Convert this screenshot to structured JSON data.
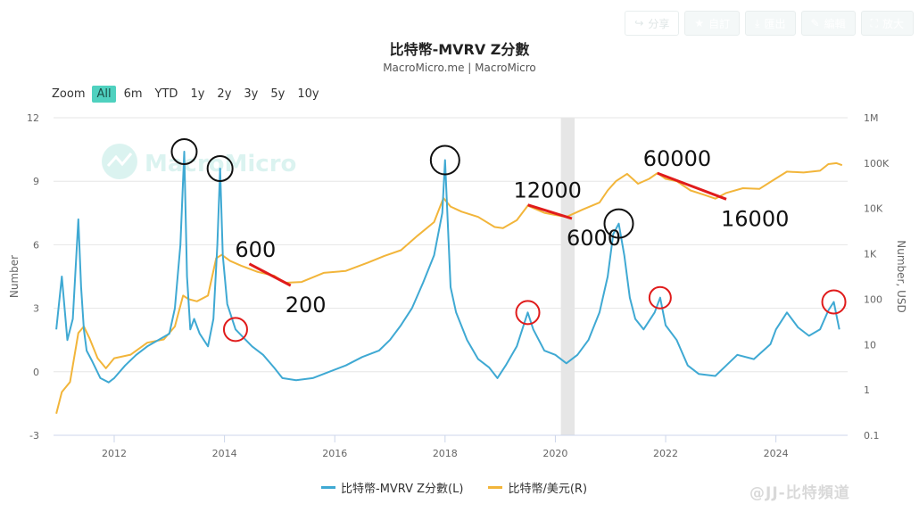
{
  "toolbar": {
    "buttons": [
      {
        "icon": "share-icon",
        "glyph": "↪",
        "label": "分享",
        "style": "outline"
      },
      {
        "icon": "star-icon",
        "glyph": "★",
        "label": "自訂",
        "style": "solid"
      },
      {
        "icon": "download-icon",
        "glyph": "⤓",
        "label": "匯出",
        "style": "solid"
      },
      {
        "icon": "pencil-icon",
        "glyph": "✎",
        "label": "編輯",
        "style": "solid"
      },
      {
        "icon": "expand-icon",
        "glyph": "⛶",
        "label": "放大",
        "style": "solid"
      }
    ]
  },
  "title": "比特幣-MVRV Z分數",
  "subtitle": "MacroMicro.me | MacroMicro",
  "range_selector": {
    "label": "Zoom",
    "options": [
      "All",
      "6m",
      "YTD",
      "1y",
      "2y",
      "3y",
      "5y",
      "10y"
    ],
    "selected": "All"
  },
  "watermark": "MacroMicro",
  "post_watermark": "@JJ-比特頻道",
  "chart_data": {
    "type": "line",
    "title": "比特幣-MVRV Z分數",
    "subtitle": "MacroMicro.me | MacroMicro",
    "xlabel": "",
    "x_ticks": [
      "2012",
      "2014",
      "2016",
      "2018",
      "2020",
      "2022",
      "2024"
    ],
    "x_range": [
      2010.9,
      2025.3
    ],
    "y_left": {
      "label": "Number",
      "ticks": [
        "-3",
        "0",
        "3",
        "6",
        "9",
        "12"
      ],
      "range": [
        -3,
        12
      ]
    },
    "y_right": {
      "label": "Number, USD",
      "scale": "log",
      "ticks": [
        "0.1",
        "1",
        "10",
        "100",
        "1K",
        "10K",
        "100K",
        "1M"
      ],
      "tick_values": [
        0.1,
        1,
        10,
        100,
        1000,
        10000,
        100000,
        1000000
      ],
      "range": [
        0.1,
        1000000
      ]
    },
    "grid": true,
    "legend_position": "bottom",
    "shaded_period": [
      2020.1,
      2020.35
    ],
    "colors": {
      "mvrv": "#3fa9d3",
      "price": "#f2b53a",
      "shade": "#e6e6e6",
      "annotation_line": "#e01b1b",
      "circle_black": "#111111",
      "circle_red": "#e01b1b"
    },
    "series": [
      {
        "name": "比特幣-MVRV Z分數(L)",
        "axis": "left",
        "x": [
          2010.95,
          2011.05,
          2011.15,
          2011.25,
          2011.35,
          2011.4,
          2011.45,
          2011.5,
          2011.6,
          2011.75,
          2011.9,
          2012.0,
          2012.2,
          2012.4,
          2012.6,
          2012.8,
          2013.0,
          2013.1,
          2013.2,
          2013.27,
          2013.32,
          2013.38,
          2013.45,
          2013.55,
          2013.7,
          2013.8,
          2013.87,
          2013.92,
          2013.97,
          2014.05,
          2014.2,
          2014.35,
          2014.5,
          2014.7,
          2014.9,
          2015.05,
          2015.3,
          2015.6,
          2015.9,
          2016.2,
          2016.5,
          2016.8,
          2017.0,
          2017.2,
          2017.4,
          2017.6,
          2017.8,
          2017.95,
          2018.0,
          2018.1,
          2018.2,
          2018.4,
          2018.6,
          2018.8,
          2018.95,
          2019.1,
          2019.3,
          2019.5,
          2019.6,
          2019.8,
          2020.0,
          2020.2,
          2020.4,
          2020.6,
          2020.8,
          2020.95,
          2021.05,
          2021.15,
          2021.25,
          2021.35,
          2021.45,
          2021.6,
          2021.8,
          2021.9,
          2022.0,
          2022.2,
          2022.4,
          2022.6,
          2022.9,
          2023.1,
          2023.3,
          2023.6,
          2023.9,
          2024.0,
          2024.2,
          2024.4,
          2024.6,
          2024.8,
          2024.95,
          2025.05,
          2025.15
        ],
        "y": [
          2.0,
          4.5,
          1.5,
          2.5,
          7.2,
          4.0,
          2.0,
          1.0,
          0.5,
          -0.3,
          -0.5,
          -0.3,
          0.3,
          0.8,
          1.2,
          1.5,
          1.8,
          3.0,
          6.0,
          10.4,
          4.5,
          2.0,
          2.5,
          1.8,
          1.2,
          2.5,
          6.0,
          9.6,
          5.5,
          3.2,
          2.0,
          1.6,
          1.2,
          0.8,
          0.2,
          -0.3,
          -0.4,
          -0.3,
          0.0,
          0.3,
          0.7,
          1.0,
          1.5,
          2.2,
          3.0,
          4.2,
          5.5,
          7.5,
          10.0,
          4.0,
          2.8,
          1.5,
          0.6,
          0.2,
          -0.3,
          0.3,
          1.2,
          2.8,
          2.0,
          1.0,
          0.8,
          0.4,
          0.8,
          1.5,
          2.8,
          4.5,
          6.5,
          7.0,
          5.5,
          3.5,
          2.5,
          2.0,
          2.8,
          3.5,
          2.2,
          1.5,
          0.3,
          -0.1,
          -0.2,
          0.3,
          0.8,
          0.6,
          1.3,
          2.0,
          2.8,
          2.1,
          1.7,
          2.0,
          2.9,
          3.3,
          2.0
        ]
      },
      {
        "name": "比特幣/美元(R)",
        "axis": "right",
        "x": [
          2010.95,
          2011.05,
          2011.2,
          2011.35,
          2011.45,
          2011.55,
          2011.7,
          2011.85,
          2012.0,
          2012.3,
          2012.6,
          2012.9,
          2013.1,
          2013.25,
          2013.35,
          2013.5,
          2013.7,
          2013.85,
          2013.95,
          2014.1,
          2014.3,
          2014.6,
          2014.9,
          2015.1,
          2015.4,
          2015.8,
          2016.2,
          2016.6,
          2016.9,
          2017.2,
          2017.5,
          2017.8,
          2017.97,
          2018.1,
          2018.3,
          2018.6,
          2018.9,
          2019.05,
          2019.3,
          2019.5,
          2019.8,
          2020.0,
          2020.2,
          2020.5,
          2020.8,
          2020.95,
          2021.1,
          2021.3,
          2021.5,
          2021.7,
          2021.85,
          2022.0,
          2022.2,
          2022.45,
          2022.7,
          2022.9,
          2023.1,
          2023.4,
          2023.7,
          2023.95,
          2024.2,
          2024.5,
          2024.8,
          2024.95,
          2025.1,
          2025.2
        ],
        "y": [
          0.3,
          0.9,
          1.5,
          18,
          25,
          14,
          5,
          3,
          5,
          6,
          11,
          13,
          25,
          120,
          100,
          90,
          120,
          800,
          950,
          700,
          550,
          400,
          330,
          230,
          240,
          380,
          420,
          640,
          900,
          1200,
          2500,
          5000,
          17000,
          11000,
          8500,
          6500,
          3900,
          3700,
          5500,
          11500,
          8000,
          7200,
          6500,
          9500,
          13500,
          25000,
          40000,
          58000,
          35000,
          45000,
          60000,
          45000,
          40000,
          25000,
          20000,
          16500,
          22000,
          28000,
          27000,
          42000,
          65000,
          62000,
          68000,
          95000,
          100000,
          90000
        ]
      }
    ],
    "annotations": {
      "numbers": [
        "600",
        "200",
        "12000",
        "6000",
        "60000",
        "16000"
      ]
    }
  }
}
